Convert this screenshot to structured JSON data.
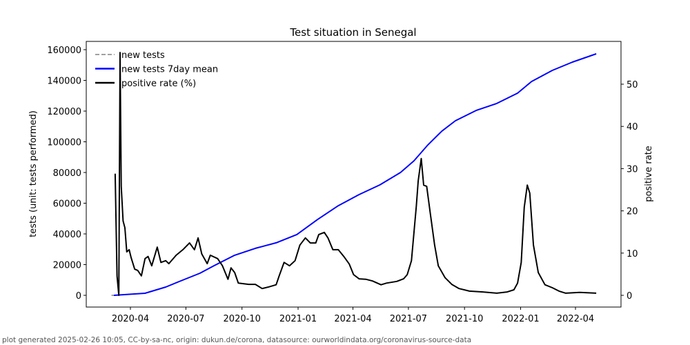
{
  "chart_data": {
    "type": "line",
    "title": "Test situation in Senegal",
    "xlabel": "",
    "ylabel": "tests (unit: tests performed)",
    "y2label": "positive rate",
    "x_unit": "days since 2020-03-01",
    "xlim": [
      -1,
      829
    ],
    "ylim": [
      -7500,
      165000
    ],
    "y2lim": [
      -3.5,
      60
    ],
    "x_ticks": [
      {
        "label": "2020-04",
        "day": 31
      },
      {
        "label": "2020-07",
        "day": 122
      },
      {
        "label": "2020-10",
        "day": 214
      },
      {
        "label": "2021-01",
        "day": 306
      },
      {
        "label": "2021-04",
        "day": 396
      },
      {
        "label": "2021-07",
        "day": 487
      },
      {
        "label": "2021-10",
        "day": 579
      },
      {
        "label": "2022-01",
        "day": 671
      },
      {
        "label": "2022-04",
        "day": 761
      }
    ],
    "y_ticks": [
      0,
      20000,
      40000,
      60000,
      80000,
      100000,
      120000,
      140000,
      160000
    ],
    "y2_ticks": [
      0,
      10,
      20,
      30,
      40,
      50
    ],
    "legend_position": "top-left",
    "series": [
      {
        "name": "new tests",
        "axis": "left",
        "color": "#808080",
        "style": "dashed",
        "points": [
          [
            0,
            0
          ],
          [
            6,
            0
          ]
        ]
      },
      {
        "name": "new tests 7day mean",
        "axis": "left",
        "color": "#0000ff",
        "style": "solid",
        "points": [
          [
            4,
            0
          ],
          [
            55,
            1350
          ],
          [
            89,
            5400
          ],
          [
            111,
            9000
          ],
          [
            145,
            14400
          ],
          [
            168,
            19300
          ],
          [
            202,
            26100
          ],
          [
            236,
            30600
          ],
          [
            270,
            34200
          ],
          [
            304,
            39600
          ],
          [
            338,
            49400
          ],
          [
            372,
            58400
          ],
          [
            406,
            65600
          ],
          [
            440,
            71900
          ],
          [
            474,
            80000
          ],
          [
            496,
            87600
          ],
          [
            519,
            98000
          ],
          [
            542,
            107000
          ],
          [
            564,
            113700
          ],
          [
            598,
            120400
          ],
          [
            632,
            125000
          ],
          [
            666,
            131700
          ],
          [
            689,
            139300
          ],
          [
            723,
            146500
          ],
          [
            756,
            151900
          ],
          [
            795,
            157300
          ]
        ]
      },
      {
        "name": "positive rate (%)",
        "axis": "right",
        "color": "#000000",
        "style": "solid",
        "points": [
          [
            6,
            28.8
          ],
          [
            9,
            4.6
          ],
          [
            12,
            0
          ],
          [
            14,
            57.5
          ],
          [
            16,
            25.8
          ],
          [
            19,
            17.6
          ],
          [
            22,
            16
          ],
          [
            25,
            10.3
          ],
          [
            29,
            10.8
          ],
          [
            32,
            9
          ],
          [
            38,
            6.2
          ],
          [
            43,
            5.9
          ],
          [
            49,
            4.6
          ],
          [
            55,
            8.7
          ],
          [
            60,
            9.2
          ],
          [
            66,
            7
          ],
          [
            75,
            11.4
          ],
          [
            81,
            7.8
          ],
          [
            89,
            8.2
          ],
          [
            94,
            7.5
          ],
          [
            106,
            9.5
          ],
          [
            117,
            10.8
          ],
          [
            128,
            12.4
          ],
          [
            136,
            10.8
          ],
          [
            142,
            13.6
          ],
          [
            148,
            9.8
          ],
          [
            157,
            7.5
          ],
          [
            162,
            9.5
          ],
          [
            174,
            8.7
          ],
          [
            182,
            7
          ],
          [
            191,
            3.8
          ],
          [
            196,
            6.5
          ],
          [
            202,
            5.4
          ],
          [
            208,
            2.9
          ],
          [
            225,
            2.6
          ],
          [
            236,
            2.6
          ],
          [
            247,
            1.6
          ],
          [
            258,
            2
          ],
          [
            270,
            2.5
          ],
          [
            275,
            4.6
          ],
          [
            283,
            7.8
          ],
          [
            292,
            7
          ],
          [
            301,
            8.2
          ],
          [
            309,
            11.9
          ],
          [
            318,
            13.6
          ],
          [
            326,
            12.4
          ],
          [
            335,
            12.4
          ],
          [
            340,
            14.4
          ],
          [
            349,
            14.9
          ],
          [
            355,
            13.6
          ],
          [
            363,
            10.8
          ],
          [
            372,
            10.8
          ],
          [
            381,
            9.2
          ],
          [
            390,
            7.4
          ],
          [
            397,
            4.9
          ],
          [
            406,
            3.9
          ],
          [
            417,
            3.8
          ],
          [
            428,
            3.4
          ],
          [
            442,
            2.5
          ],
          [
            451,
            2.9
          ],
          [
            468,
            3.3
          ],
          [
            479,
            3.9
          ],
          [
            485,
            4.9
          ],
          [
            492,
            8.2
          ],
          [
            500,
            21.2
          ],
          [
            503,
            27.1
          ],
          [
            508,
            32.4
          ],
          [
            512,
            26.1
          ],
          [
            517,
            25.8
          ],
          [
            523,
            19.3
          ],
          [
            530,
            11.9
          ],
          [
            536,
            7
          ],
          [
            547,
            4.2
          ],
          [
            558,
            2.6
          ],
          [
            570,
            1.6
          ],
          [
            587,
            1
          ],
          [
            609,
            0.8
          ],
          [
            632,
            0.5
          ],
          [
            649,
            0.8
          ],
          [
            660,
            1.3
          ],
          [
            666,
            2.9
          ],
          [
            672,
            7.8
          ],
          [
            677,
            20.9
          ],
          [
            682,
            26.1
          ],
          [
            686,
            24.2
          ],
          [
            692,
            11.9
          ],
          [
            700,
            5.4
          ],
          [
            711,
            2.5
          ],
          [
            723,
            1.8
          ],
          [
            734,
            1
          ],
          [
            745,
            0.5
          ],
          [
            768,
            0.7
          ],
          [
            795,
            0.5
          ]
        ]
      }
    ]
  },
  "footer": "plot generated 2025-02-26 10:05, CC-by-sa-nc, origin: dukun.de/corona, datasource: ourworldindata.org/coronavirus-source-data"
}
